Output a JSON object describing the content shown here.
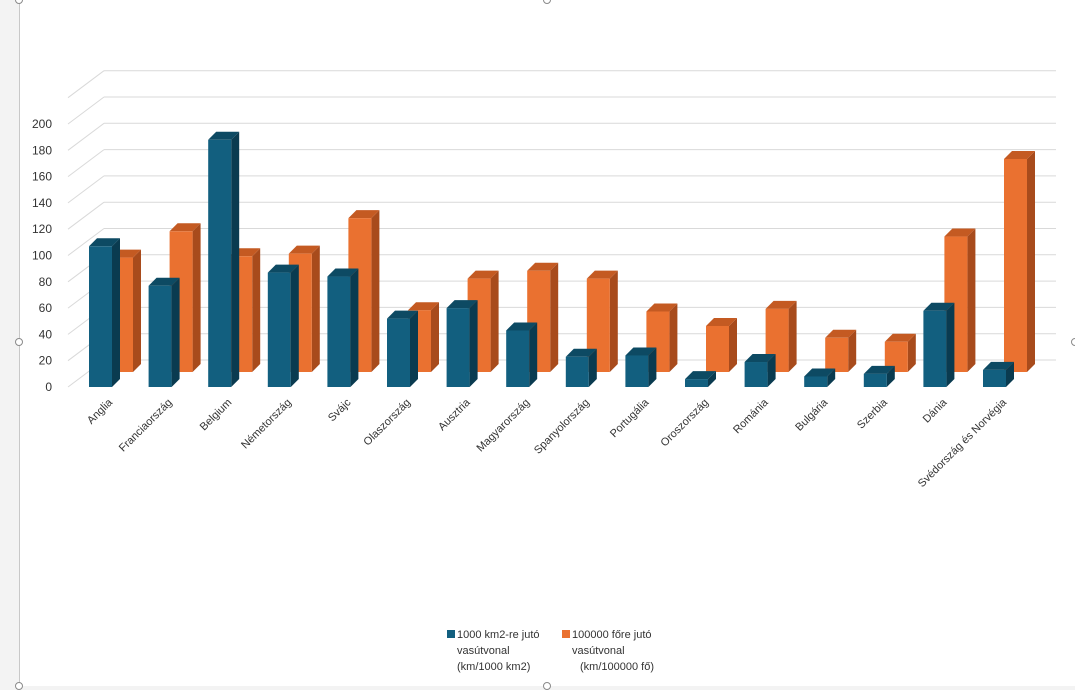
{
  "colors": {
    "series1_front": "#125f7f",
    "series1_top": "#0d4a63",
    "series1_side": "#0a3b50",
    "series2_front": "#ea7130",
    "series2_top": "#c45a22",
    "series2_side": "#a84b1c",
    "grid": "#d9d9d9",
    "background": "#ffffff"
  },
  "chart_data": {
    "type": "bar",
    "variant": "3d-clustered-column",
    "categories": [
      "Anglia",
      "Franciaország",
      "Belgium",
      "Németország",
      "Svájc",
      "Olaszország",
      "Ausztria",
      "Magyarország",
      "Spanyolország",
      "Portugália",
      "Oroszország",
      "Románia",
      "Bulgária",
      "Szerbia",
      "Dánia",
      "Svédország és Norvégia"
    ],
    "series": [
      {
        "name_lines": [
          "1000 km2-re jutó",
          "vasútvonal",
          "(km/1000 km2)"
        ],
        "values": [
          107,
          77,
          188,
          87,
          84,
          52,
          60,
          43,
          23,
          24,
          6,
          19,
          8,
          10,
          58,
          13
        ]
      },
      {
        "name_lines": [
          "100000 főre jutó",
          "vasútvonal",
          "(km/100000 fő)"
        ],
        "values": [
          87,
          107,
          88,
          90,
          117,
          47,
          71,
          77,
          71,
          46,
          35,
          48,
          26,
          23,
          103,
          162
        ]
      }
    ],
    "yticks": [
      "0",
      "20",
      "40",
      "60",
      "80",
      "100",
      "120",
      "140",
      "160",
      "180",
      "200"
    ],
    "ylim": [
      0,
      200
    ],
    "grid": true,
    "legend_position": "bottom"
  }
}
